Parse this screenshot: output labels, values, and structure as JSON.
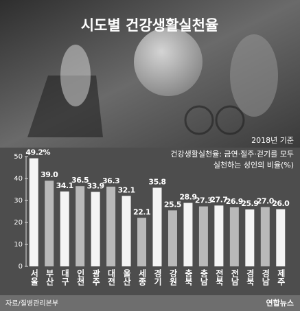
{
  "chart_data": {
    "type": "bar",
    "title": "시도별 건강생활실천율",
    "subtitle": "2018년 기준",
    "note_lines": [
      "건강생활실천율: 금연·절주·걷기를 모두",
      "실천하는 성인의 비율(%)"
    ],
    "source": "자료/질병관리본부",
    "credit": "연합뉴스",
    "categories": [
      "서울",
      "부산",
      "대구",
      "인천",
      "광주",
      "대전",
      "울산",
      "세종",
      "경기",
      "강원",
      "충북",
      "충남",
      "전북",
      "전남",
      "경북",
      "경남",
      "제주"
    ],
    "values": [
      49.2,
      39.0,
      34.1,
      36.5,
      33.9,
      36.3,
      32.1,
      22.1,
      35.8,
      25.5,
      28.9,
      27.3,
      27.7,
      26.9,
      25.9,
      27.0,
      26.0
    ],
    "value_labels": [
      "49.2%",
      "39.0",
      "34.1",
      "36.5",
      "33.9",
      "36.3",
      "32.1",
      "22.1",
      "35.8",
      "25.5",
      "28.9",
      "27.3",
      "27.7",
      "26.9",
      "25.9",
      "27.0",
      "26.0"
    ],
    "colors": [
      "#f4f4f4",
      "#b9b9b9"
    ],
    "ylim": [
      0,
      50
    ],
    "yticks": [
      0,
      10,
      20,
      30,
      40,
      50
    ],
    "grid": false
  }
}
